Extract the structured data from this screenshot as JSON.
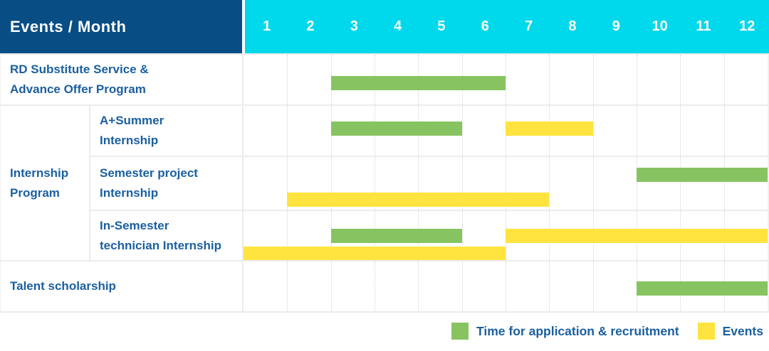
{
  "header": {
    "title": "Events / Month"
  },
  "group_label": "Internship\nProgram",
  "colors": {
    "header_bg": "#084e85",
    "months_bg": "#00d8ec",
    "recruitment": "#87c461",
    "events": "#ffe33f",
    "label_text": "#1a5fa0",
    "header_text": "#ffffff"
  },
  "legend": {
    "recruitment_label": "Time for application & recruitment",
    "events_label": "Events"
  },
  "chart_data": {
    "type": "bar",
    "subtype": "gantt-timeline",
    "title": "Events / Month",
    "x_axis": {
      "ticks": [
        "1",
        "2",
        "3",
        "4",
        "5",
        "6",
        "7",
        "8",
        "9",
        "10",
        "11",
        "12"
      ],
      "range": [
        1,
        12
      ],
      "grid": "vertical-dotted"
    },
    "legend_position": "bottom-right",
    "series_legend": [
      {
        "name": "recruitment",
        "label": "Time for application & recruitment",
        "color": "#87c461"
      },
      {
        "name": "events",
        "label": "Events",
        "color": "#ffe33f"
      }
    ],
    "rows": [
      {
        "group": "",
        "label": "RD Substitute Service &\nAdvance Offer Program",
        "bars": [
          {
            "series": "recruitment",
            "start_month": 3,
            "end_month": 6,
            "lane": 0
          }
        ]
      },
      {
        "group": "Internship Program",
        "label": "A+Summer\nInternship",
        "bars": [
          {
            "series": "recruitment",
            "start_month": 3,
            "end_month": 5,
            "lane": 0
          },
          {
            "series": "events",
            "start_month": 7,
            "end_month": 8,
            "lane": 0
          }
        ]
      },
      {
        "group": "Internship Program",
        "label": "Semester project\nInternship",
        "bars": [
          {
            "series": "recruitment",
            "start_month": 10,
            "end_month": 12,
            "lane": 0
          },
          {
            "series": "events",
            "start_month": 2,
            "end_month": 7,
            "lane": 1
          }
        ]
      },
      {
        "group": "Internship Program",
        "label": "In-Semester\ntechnician Internship",
        "bars": [
          {
            "series": "recruitment",
            "start_month": 3,
            "end_month": 5,
            "lane": 0
          },
          {
            "series": "events",
            "start_month": 7,
            "end_month": 12,
            "lane": 0
          },
          {
            "series": "events",
            "start_month": 1,
            "end_month": 6,
            "lane": 1
          }
        ]
      },
      {
        "group": "",
        "label": "Talent scholarship",
        "bars": [
          {
            "series": "recruitment",
            "start_month": 10,
            "end_month": 12,
            "lane": 0
          }
        ]
      }
    ]
  }
}
